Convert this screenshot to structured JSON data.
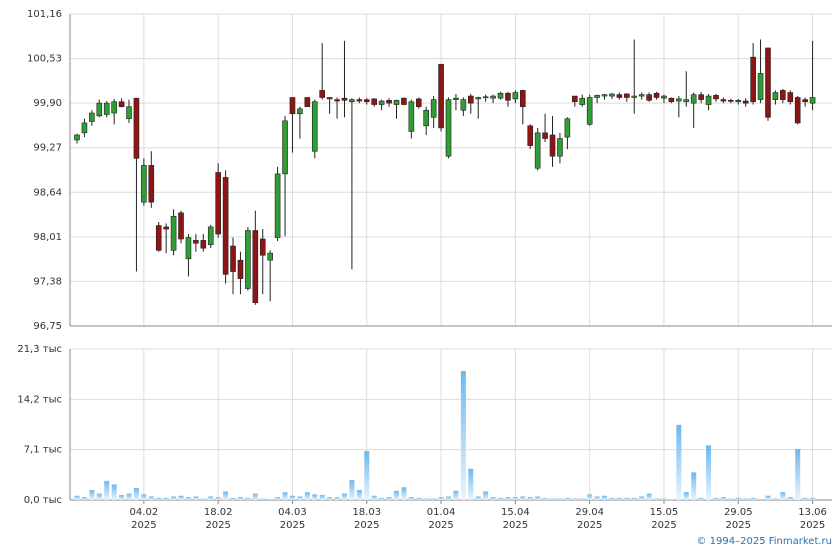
{
  "chart_data": [
    {
      "type": "candlestick",
      "up_color": "#2f9e35",
      "down_color": "#8e1515",
      "wick_color": "#222222",
      "grid": true,
      "ylim": [
        96.75,
        101.16
      ],
      "yticks": [
        {
          "value": 96.75,
          "label": "96,75"
        },
        {
          "value": 97.38,
          "label": "97,38"
        },
        {
          "value": 98.01,
          "label": "98,01"
        },
        {
          "value": 98.64,
          "label": "98,64"
        },
        {
          "value": 99.27,
          "label": "99,27"
        },
        {
          "value": 99.9,
          "label": "99,90"
        },
        {
          "value": 100.53,
          "label": "100,53"
        },
        {
          "value": 101.16,
          "label": "101,16"
        }
      ],
      "open": [
        99.38,
        99.48,
        99.64,
        99.72,
        99.74,
        99.76,
        99.92,
        99.68,
        99.97,
        98.5,
        99.02,
        98.17,
        98.15,
        97.82,
        98.35,
        97.7,
        97.96,
        97.96,
        97.9,
        98.92,
        98.85,
        97.88,
        97.68,
        97.28,
        98.1,
        97.98,
        97.68,
        98.0,
        98.9,
        99.98,
        99.75,
        99.98,
        99.22,
        100.08,
        99.98,
        99.95,
        99.97,
        99.92,
        99.95,
        99.95,
        99.96,
        99.88,
        99.94,
        99.88,
        99.97,
        99.5,
        99.96,
        99.58,
        99.7,
        100.45,
        99.15,
        99.95,
        99.8,
        100.0,
        99.96,
        99.98,
        99.97,
        99.97,
        100.04,
        99.96,
        100.08,
        99.58,
        98.98,
        99.48,
        99.45,
        99.15,
        99.42,
        100.0,
        99.88,
        99.6,
        99.98,
        100.0,
        100.0,
        100.02,
        100.03,
        99.98,
        100.0,
        100.02,
        100.04,
        99.97,
        99.97,
        99.93,
        99.92,
        99.9,
        100.02,
        99.88,
        100.01,
        99.95,
        99.94,
        99.92,
        99.93,
        100.55,
        99.95,
        100.68,
        99.95,
        100.08,
        100.05,
        99.98,
        99.95,
        99.9
      ],
      "high": [
        99.47,
        99.68,
        99.8,
        99.95,
        99.93,
        99.96,
        99.97,
        99.95,
        99.97,
        99.12,
        99.22,
        98.22,
        98.2,
        98.4,
        98.38,
        98.05,
        98.05,
        98.05,
        98.18,
        99.05,
        98.95,
        98.0,
        97.8,
        98.15,
        98.38,
        98.12,
        97.82,
        99.0,
        99.72,
        99.98,
        99.85,
        99.98,
        99.95,
        100.75,
        99.98,
        99.98,
        100.78,
        99.97,
        99.98,
        99.97,
        99.97,
        99.95,
        99.97,
        99.95,
        99.98,
        99.95,
        99.98,
        99.85,
        100.0,
        100.45,
        99.98,
        100.03,
        99.98,
        100.03,
        99.99,
        100.02,
        100.02,
        100.06,
        100.06,
        100.08,
        100.09,
        99.6,
        99.55,
        99.75,
        99.72,
        99.48,
        99.7,
        100.0,
        100.02,
        100.02,
        100.02,
        100.03,
        100.04,
        100.05,
        100.04,
        100.8,
        100.05,
        100.05,
        100.06,
        100.02,
        99.98,
        100.0,
        100.35,
        100.05,
        100.06,
        100.03,
        100.03,
        99.98,
        99.96,
        99.96,
        99.97,
        100.75,
        100.8,
        100.68,
        100.08,
        100.1,
        100.08,
        100.0,
        99.98,
        100.78
      ],
      "low": [
        99.33,
        99.42,
        99.58,
        99.7,
        99.7,
        99.6,
        99.84,
        99.62,
        97.52,
        98.45,
        98.42,
        97.8,
        97.78,
        97.75,
        97.92,
        97.45,
        97.8,
        97.8,
        97.85,
        98.0,
        97.35,
        97.2,
        97.2,
        97.25,
        97.05,
        97.2,
        97.1,
        97.95,
        98.02,
        99.2,
        99.4,
        99.85,
        99.12,
        99.95,
        99.75,
        99.68,
        99.7,
        97.55,
        99.9,
        99.88,
        99.85,
        99.8,
        99.85,
        99.68,
        99.87,
        99.4,
        99.82,
        99.45,
        99.55,
        99.5,
        99.12,
        99.8,
        99.72,
        99.75,
        99.68,
        99.92,
        99.9,
        99.95,
        99.85,
        99.9,
        99.6,
        99.25,
        98.95,
        99.35,
        99.0,
        99.05,
        99.25,
        99.85,
        99.85,
        99.58,
        99.9,
        99.95,
        99.96,
        99.95,
        99.92,
        99.75,
        99.95,
        99.92,
        99.95,
        99.9,
        99.9,
        99.7,
        99.85,
        99.55,
        99.9,
        99.8,
        99.92,
        99.9,
        99.9,
        99.88,
        99.85,
        99.88,
        99.9,
        99.65,
        99.88,
        99.9,
        99.88,
        99.6,
        99.85,
        99.8
      ],
      "close": [
        99.45,
        99.62,
        99.76,
        99.9,
        99.9,
        99.92,
        99.85,
        99.85,
        99.12,
        99.02,
        98.5,
        97.82,
        98.12,
        98.3,
        97.98,
        98.0,
        97.92,
        97.85,
        98.15,
        98.05,
        97.48,
        97.52,
        97.42,
        98.1,
        97.08,
        97.75,
        97.78,
        98.9,
        99.65,
        99.75,
        99.82,
        99.85,
        99.92,
        99.98,
        99.96,
        99.93,
        99.94,
        99.95,
        99.93,
        99.92,
        99.88,
        99.93,
        99.9,
        99.94,
        99.88,
        99.92,
        99.85,
        99.8,
        99.95,
        99.55,
        99.95,
        99.97,
        99.95,
        99.9,
        99.98,
        99.99,
        100.0,
        100.04,
        99.94,
        100.05,
        99.85,
        99.3,
        99.48,
        99.4,
        99.15,
        99.4,
        99.68,
        99.92,
        99.97,
        99.98,
        100.01,
        100.02,
        100.03,
        99.98,
        99.98,
        100.0,
        100.02,
        99.94,
        99.98,
        100.0,
        99.92,
        99.96,
        99.95,
        100.02,
        99.95,
        100.0,
        99.96,
        99.93,
        99.93,
        99.94,
        99.9,
        99.92,
        100.32,
        99.7,
        100.05,
        99.95,
        99.92,
        99.62,
        99.92,
        99.98
      ]
    },
    {
      "type": "bar",
      "color": "#6db8ee",
      "grid": true,
      "ylim": [
        0,
        21.3
      ],
      "yticks": [
        {
          "value": 0,
          "label": "0,0 тыс"
        },
        {
          "value": 7.1,
          "label": "7,1 тыс"
        },
        {
          "value": 14.2,
          "label": "14,2 тыс"
        },
        {
          "value": 21.3,
          "label": "21,3 тыс"
        }
      ],
      "categories": [
        null,
        null,
        null,
        null,
        null,
        null,
        null,
        null,
        null,
        "04.02",
        null,
        null,
        null,
        null,
        null,
        null,
        null,
        null,
        null,
        "18.02",
        null,
        null,
        null,
        null,
        null,
        null,
        null,
        null,
        null,
        "04.03",
        null,
        null,
        null,
        null,
        null,
        null,
        null,
        null,
        null,
        "18.03",
        null,
        null,
        null,
        null,
        null,
        null,
        null,
        null,
        null,
        "01.04",
        null,
        null,
        null,
        null,
        null,
        null,
        null,
        null,
        null,
        "15.04",
        null,
        null,
        null,
        null,
        null,
        null,
        null,
        null,
        null,
        "29.04",
        null,
        null,
        null,
        null,
        null,
        null,
        null,
        null,
        null,
        "15.05",
        null,
        null,
        null,
        null,
        null,
        null,
        null,
        null,
        null,
        "29.05",
        null,
        null,
        null,
        null,
        null,
        null,
        null,
        null,
        null,
        "13.06"
      ],
      "year": "2025",
      "values": [
        0.6,
        0.4,
        1.4,
        0.9,
        2.7,
        2.2,
        0.7,
        0.9,
        1.7,
        0.8,
        0.5,
        0.3,
        0.3,
        0.5,
        0.6,
        0.4,
        0.5,
        0.2,
        0.5,
        0.4,
        1.2,
        0.3,
        0.4,
        0.3,
        0.9,
        0.2,
        0.1,
        0.4,
        1.1,
        0.6,
        0.5,
        1.1,
        0.8,
        0.7,
        0.4,
        0.4,
        0.9,
        2.8,
        1.4,
        6.9,
        0.6,
        0.3,
        0.4,
        1.3,
        1.8,
        0.4,
        0.3,
        0.2,
        0.2,
        0.4,
        0.5,
        1.3,
        18.2,
        4.4,
        0.5,
        1.2,
        0.4,
        0.3,
        0.4,
        0.4,
        0.5,
        0.4,
        0.5,
        0.3,
        0.2,
        0.2,
        0.3,
        0.2,
        0.2,
        0.8,
        0.5,
        0.6,
        0.3,
        0.3,
        0.3,
        0.3,
        0.5,
        0.9,
        0.2,
        0.2,
        0.1,
        10.6,
        1.1,
        3.9,
        0.3,
        7.7,
        0.3,
        0.4,
        0.2,
        0.3,
        0.2,
        0.3,
        0.1,
        0.6,
        0.2,
        1.1,
        0.4,
        7.2,
        0.3,
        0.3
      ]
    }
  ],
  "source": "© 1994–2025 Finmarket.ru"
}
